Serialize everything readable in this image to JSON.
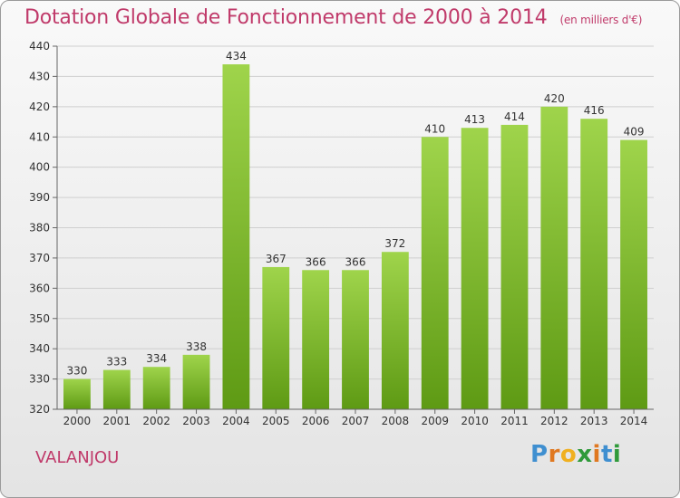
{
  "title": "Dotation Globale de Fonctionnement de 2000 à 2014",
  "subtitle": "(en milliers d'€)",
  "commune": "VALANJOU",
  "logo": {
    "p": "P",
    "r": "r",
    "o": "o",
    "x": "x",
    "i": "i",
    "t": "t",
    "i2": "i"
  },
  "colors": {
    "title": "#c03a6a",
    "bar_light": "#9fd44b",
    "bar_dark": "#5e9a14",
    "grid": "#cfcfcf"
  },
  "chart_data": {
    "type": "bar",
    "categories": [
      "2000",
      "2001",
      "2002",
      "2003",
      "2004",
      "2005",
      "2006",
      "2007",
      "2008",
      "2009",
      "2010",
      "2011",
      "2012",
      "2013",
      "2014"
    ],
    "values": [
      330,
      333,
      334,
      338,
      434,
      367,
      366,
      366,
      372,
      410,
      413,
      414,
      420,
      416,
      409
    ],
    "title": "Dotation Globale de Fonctionnement de 2000 à 2014",
    "ylim": [
      320,
      440
    ],
    "yticks": [
      320,
      330,
      340,
      350,
      360,
      370,
      380,
      390,
      400,
      410,
      420,
      430,
      440
    ],
    "grid": true,
    "data_labels": true
  }
}
